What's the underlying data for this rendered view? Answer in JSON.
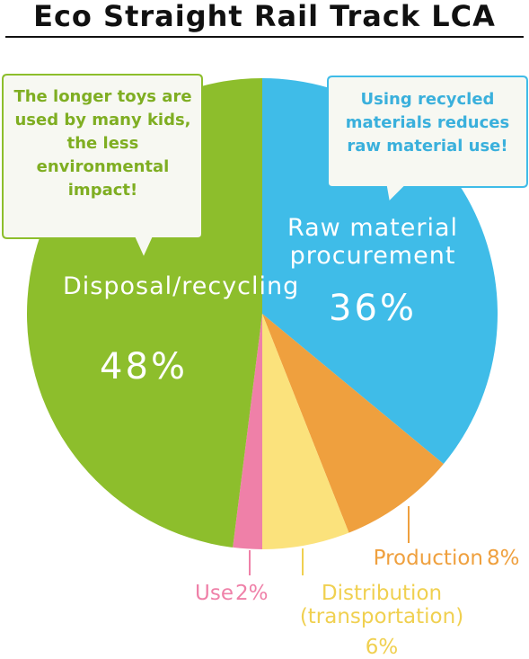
{
  "chart_data": {
    "type": "pie",
    "title": "Eco Straight Rail Track LCA",
    "categories": [
      "Raw material procurement",
      "Production",
      "Distribution (transportation)",
      "Use",
      "Disposal/recycling"
    ],
    "values": [
      36,
      8,
      6,
      2,
      48
    ],
    "value_labels": [
      "36%",
      "8%",
      "6%",
      "2%",
      "48%"
    ],
    "colors": [
      "#3fbce8",
      "#efa03e",
      "#fbe27c",
      "#ef80a8",
      "#8dbe2c"
    ],
    "annotations": [
      "The longer toys are used by many kids, the less environmental impact!",
      "Using recycled materials reduces raw material use!"
    ]
  }
}
